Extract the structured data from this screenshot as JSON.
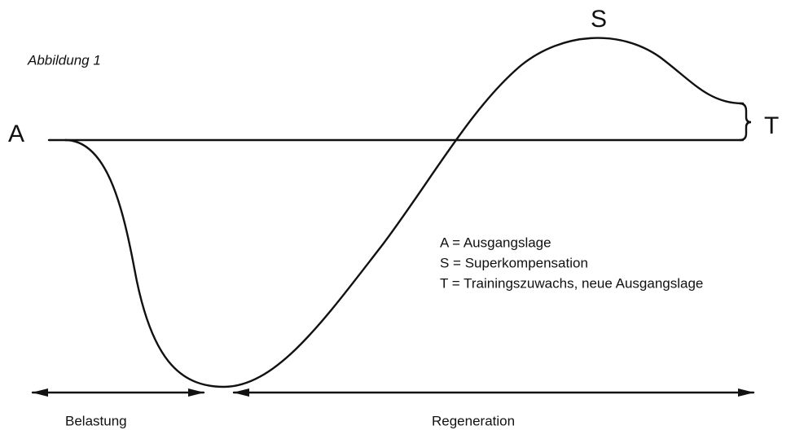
{
  "caption": "Abbildung 1",
  "labels": {
    "a": "A",
    "s": "S",
    "t": "T"
  },
  "legend": [
    "A = Ausgangslage",
    "S = Superkompensation",
    "T = Trainingszuwachs, neue Ausgangslage"
  ],
  "phases": {
    "load": "Belastung",
    "recovery": "Regeneration"
  }
}
